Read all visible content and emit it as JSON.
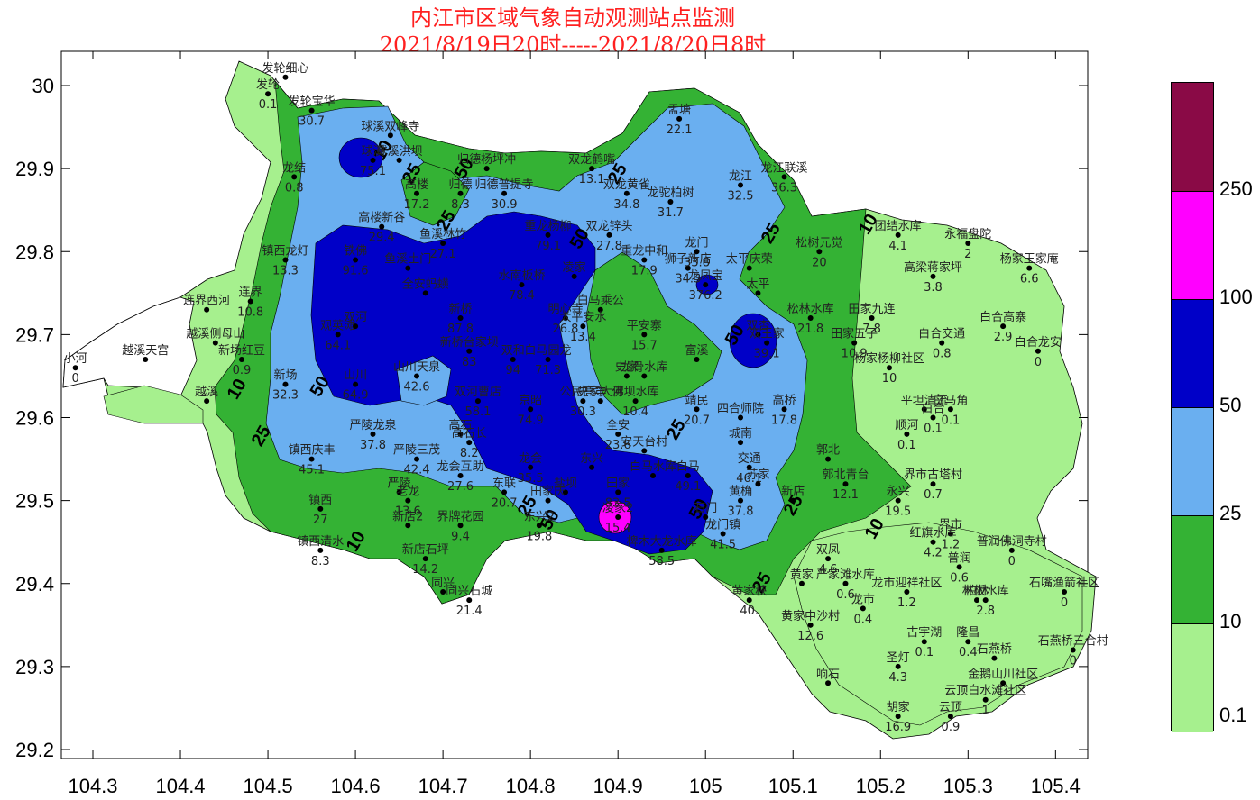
{
  "title": {
    "line1": "内江市区域气象自动观测站点监测",
    "line2": "2021/8/19日20时-----2021/8/20日8时"
  },
  "axes": {
    "x_ticks": [
      "104.3",
      "104.4",
      "104.5",
      "104.6",
      "104.7",
      "104.8",
      "104.9",
      "105",
      "105.1",
      "105.2",
      "105.3",
      "105.4"
    ],
    "y_ticks": [
      "30",
      "29.9",
      "29.8",
      "29.7",
      "29.6",
      "29.5",
      "29.4",
      "29.3",
      "29.2"
    ]
  },
  "legend": {
    "levels": [
      "0.1",
      "10",
      "25",
      "50",
      "100",
      "250"
    ],
    "colors": [
      "#a6f08e",
      "#34b234",
      "#6aaff0",
      "#0000c8",
      "#ff00ff",
      "#8a0a46"
    ]
  },
  "contour_labels": [
    "10",
    "25",
    "50",
    "10",
    "25",
    "50",
    "25",
    "10",
    "25",
    "50",
    "25",
    "10",
    "25",
    "50",
    "25",
    "10",
    "25",
    "50",
    "25",
    "50"
  ],
  "stations": [
    {
      "name": "发轮细心",
      "value": "",
      "lon": 104.52,
      "lat": 30.01
    },
    {
      "name": "发轮",
      "value": "0.1",
      "lon": 104.5,
      "lat": 29.99
    },
    {
      "name": "发轮宝华",
      "value": "30.7",
      "lon": 104.55,
      "lat": 29.97
    },
    {
      "name": "球溪双峰寺",
      "value": "",
      "lon": 104.64,
      "lat": 29.94
    },
    {
      "name": "球溪",
      "value": "75.1",
      "lon": 104.62,
      "lat": 29.91
    },
    {
      "name": "球溪洪坝",
      "value": "",
      "lon": 104.65,
      "lat": 29.91
    },
    {
      "name": "归德杨坪冲",
      "value": "",
      "lon": 104.75,
      "lat": 29.9
    },
    {
      "name": "高楼",
      "value": "17.2",
      "lon": 104.67,
      "lat": 29.87
    },
    {
      "name": "归德",
      "value": "8.3",
      "lon": 104.72,
      "lat": 29.87
    },
    {
      "name": "归德普提寺",
      "value": "30.9",
      "lon": 104.77,
      "lat": 29.87
    },
    {
      "name": "龙结",
      "value": "0.8",
      "lon": 104.53,
      "lat": 29.89
    },
    {
      "name": "高楼新谷",
      "value": "29.4",
      "lon": 104.63,
      "lat": 29.83
    },
    {
      "name": "鱼溪林竹",
      "value": "27.1",
      "lon": 104.7,
      "lat": 29.81
    },
    {
      "name": "重龙杨柳",
      "value": "79.1",
      "lon": 104.82,
      "lat": 29.82
    },
    {
      "name": "双龙锌头",
      "value": "27.8",
      "lon": 104.89,
      "lat": 29.82
    },
    {
      "name": "双龙鹤嘴",
      "value": "13.1",
      "lon": 104.87,
      "lat": 29.9
    },
    {
      "name": "双龙黄雀",
      "value": "34.8",
      "lon": 104.91,
      "lat": 29.87
    },
    {
      "name": "龙驼柏树",
      "value": "31.7",
      "lon": 104.96,
      "lat": 29.86
    },
    {
      "name": "盂塘",
      "value": "22.1",
      "lon": 104.97,
      "lat": 29.96
    },
    {
      "name": "龙江",
      "value": "32.5",
      "lon": 105.04,
      "lat": 29.88
    },
    {
      "name": "龙江联溪",
      "value": "36.3",
      "lon": 105.09,
      "lat": 29.89
    },
    {
      "name": "镇西龙灯",
      "value": "13.3",
      "lon": 104.52,
      "lat": 29.79
    },
    {
      "name": "铁佛",
      "value": "91.6",
      "lon": 104.6,
      "lat": 29.79
    },
    {
      "name": "鱼溪土门",
      "value": "",
      "lon": 104.66,
      "lat": 29.78
    },
    {
      "name": "全安蚂蟥",
      "value": "",
      "lon": 104.68,
      "lat": 29.75
    },
    {
      "name": "水南板桥",
      "value": "78.4",
      "lon": 104.79,
      "lat": 29.76
    },
    {
      "name": "凌家",
      "value": "",
      "lon": 104.85,
      "lat": 29.77
    },
    {
      "name": "重龙中和",
      "value": "17.9",
      "lon": 104.93,
      "lat": 29.79
    },
    {
      "name": "狮子新店",
      "value": "34.3",
      "lon": 104.98,
      "lat": 29.78
    },
    {
      "name": "龙门",
      "value": "33.8",
      "lon": 104.99,
      "lat": 29.8
    },
    {
      "name": "太平庆荣",
      "value": "",
      "lon": 105.05,
      "lat": 29.78
    },
    {
      "name": "太平",
      "value": "",
      "lon": 105.06,
      "lat": 29.75
    },
    {
      "name": "龙凤宝",
      "value": "376.2",
      "lon": 105.0,
      "lat": 29.76
    },
    {
      "name": "松树元觉",
      "value": "20",
      "lon": 105.13,
      "lat": 29.8
    },
    {
      "name": "团结水库",
      "value": "4.1",
      "lon": 105.22,
      "lat": 29.82
    },
    {
      "name": "永福盘陀",
      "value": "2",
      "lon": 105.3,
      "lat": 29.81
    },
    {
      "name": "杨家王家庵",
      "value": "6.6",
      "lon": 105.37,
      "lat": 29.78
    },
    {
      "name": "高梁蒋家坪",
      "value": "3.8",
      "lon": 105.26,
      "lat": 29.77
    },
    {
      "name": "连界西河",
      "value": "",
      "lon": 104.43,
      "lat": 29.73
    },
    {
      "name": "连界",
      "value": "10.8",
      "lon": 104.48,
      "lat": 29.74
    },
    {
      "name": "观英滩",
      "value": "64.1",
      "lon": 104.58,
      "lat": 29.7
    },
    {
      "name": "双河",
      "value": "",
      "lon": 104.6,
      "lat": 29.71
    },
    {
      "name": "新桥",
      "value": "87.8",
      "lon": 104.72,
      "lat": 29.72
    },
    {
      "name": "明心寺",
      "value": "26.8",
      "lon": 104.84,
      "lat": 29.72
    },
    {
      "name": "白马乘公",
      "value": "",
      "lon": 104.88,
      "lat": 29.73
    },
    {
      "name": "太平安水",
      "value": "13.4",
      "lon": 104.86,
      "lat": 29.71
    },
    {
      "name": "平安寨",
      "value": "15.7",
      "lon": 104.93,
      "lat": 29.7
    },
    {
      "name": "双杏",
      "value": "",
      "lon": 105.06,
      "lat": 29.7
    },
    {
      "name": "双王家",
      "value": "39.1",
      "lon": 105.07,
      "lat": 29.69
    },
    {
      "name": "松林水库",
      "value": "21.8",
      "lon": 105.12,
      "lat": 29.72
    },
    {
      "name": "田家九连",
      "value": "7.8",
      "lon": 105.19,
      "lat": 29.72
    },
    {
      "name": "田家五子",
      "value": "10.9",
      "lon": 105.17,
      "lat": 29.69
    },
    {
      "name": "白合交通",
      "value": "0.8",
      "lon": 105.27,
      "lat": 29.69
    },
    {
      "name": "白合高寨",
      "value": "2.9",
      "lon": 105.34,
      "lat": 29.71
    },
    {
      "name": "白合龙安",
      "value": "0",
      "lon": 105.38,
      "lat": 29.68
    },
    {
      "name": "越溪侧母山",
      "value": "",
      "lon": 104.44,
      "lat": 29.69
    },
    {
      "name": "越溪天宫",
      "value": "",
      "lon": 104.36,
      "lat": 29.67
    },
    {
      "name": "新场红豆",
      "value": "0.9",
      "lon": 104.47,
      "lat": 29.67
    },
    {
      "name": "小河",
      "value": "0",
      "lon": 104.28,
      "lat": 29.66
    },
    {
      "name": "新场",
      "value": "32.3",
      "lon": 104.52,
      "lat": 29.64
    },
    {
      "name": "山川",
      "value": "64.9",
      "lon": 104.6,
      "lat": 29.64
    },
    {
      "name": "山川天泉",
      "value": "42.6",
      "lon": 104.67,
      "lat": 29.65
    },
    {
      "name": "新桥台家坝",
      "value": "83",
      "lon": 104.73,
      "lat": 29.68
    },
    {
      "name": "双和",
      "value": "94",
      "lon": 104.78,
      "lat": 29.67
    },
    {
      "name": "白马园龙",
      "value": "71.3",
      "lon": 104.82,
      "lat": 29.67
    },
    {
      "name": "史家",
      "value": "",
      "lon": 104.91,
      "lat": 29.65
    },
    {
      "name": "龙骨水库",
      "value": "",
      "lon": 104.93,
      "lat": 29.65
    },
    {
      "name": "富溪",
      "value": "",
      "lon": 104.99,
      "lat": 29.67
    },
    {
      "name": "杨家杨柳社区",
      "value": "10",
      "lon": 105.21,
      "lat": 29.66
    },
    {
      "name": "越溪",
      "value": "",
      "lon": 104.43,
      "lat": 29.62
    },
    {
      "name": "双河曹店",
      "value": "58.1",
      "lon": 104.74,
      "lat": 29.62
    },
    {
      "name": "京昭",
      "value": "74.9",
      "lon": 104.8,
      "lat": 29.61
    },
    {
      "name": "公民高丰",
      "value": "30.3",
      "lon": 104.86,
      "lat": 29.62
    },
    {
      "name": "史家大佛",
      "value": "",
      "lon": 104.88,
      "lat": 29.62
    },
    {
      "name": "河坝水库",
      "value": "10.4",
      "lon": 104.92,
      "lat": 29.62
    },
    {
      "name": "靖民",
      "value": "20.7",
      "lon": 104.99,
      "lat": 29.61
    },
    {
      "name": "四合师院",
      "value": "",
      "lon": 105.04,
      "lat": 29.6
    },
    {
      "name": "高桥",
      "value": "17.8",
      "lon": 105.09,
      "lat": 29.61
    },
    {
      "name": "平坦清流",
      "value": "",
      "lon": 105.25,
      "lat": 29.61
    },
    {
      "name": "顺河",
      "value": "0.1",
      "lon": 105.23,
      "lat": 29.58
    },
    {
      "name": "白合",
      "value": "0.1",
      "lon": 105.26,
      "lat": 29.6
    },
    {
      "name": "白马角",
      "value": "0.1",
      "lon": 105.28,
      "lat": 29.61
    },
    {
      "name": "镇西庆丰",
      "value": "45.1",
      "lon": 104.55,
      "lat": 29.55
    },
    {
      "name": "严陵龙泉",
      "value": "37.8",
      "lon": 104.62,
      "lat": 29.58
    },
    {
      "name": "高石",
      "value": "",
      "lon": 104.72,
      "lat": 29.58
    },
    {
      "name": "高石长",
      "value": "8.2",
      "lon": 104.73,
      "lat": 29.57
    },
    {
      "name": "全安",
      "value": "23.6",
      "lon": 104.9,
      "lat": 29.58
    },
    {
      "name": "安天台村",
      "value": "",
      "lon": 104.93,
      "lat": 29.56
    },
    {
      "name": "城南",
      "value": "",
      "lon": 105.04,
      "lat": 29.57
    },
    {
      "name": "严陵三茂",
      "value": "42.4",
      "lon": 104.67,
      "lat": 29.55
    },
    {
      "name": "交通",
      "value": "46.1",
      "lon": 105.05,
      "lat": 29.54
    },
    {
      "name": "郭北",
      "value": "",
      "lon": 105.14,
      "lat": 29.55
    },
    {
      "name": "郭北青台",
      "value": "12.1",
      "lon": 105.16,
      "lat": 29.52
    },
    {
      "name": "永兴",
      "value": "19.5",
      "lon": 105.22,
      "lat": 29.5
    },
    {
      "name": "界市古塔村",
      "value": "0.7",
      "lon": 105.26,
      "lat": 29.52
    },
    {
      "name": "龙会互助",
      "value": "27.6",
      "lon": 104.72,
      "lat": 29.53
    },
    {
      "name": "龙会",
      "value": "35.5",
      "lon": 104.8,
      "lat": 29.54
    },
    {
      "name": "东兴",
      "value": "",
      "lon": 104.87,
      "lat": 29.54
    },
    {
      "name": "白马水库",
      "value": "",
      "lon": 104.94,
      "lat": 29.53
    },
    {
      "name": "白马",
      "value": "49.1",
      "lon": 104.98,
      "lat": 29.53
    },
    {
      "name": "苏家",
      "value": "",
      "lon": 105.06,
      "lat": 29.52
    },
    {
      "name": "黄桷",
      "value": "37.8",
      "lon": 105.04,
      "lat": 29.5
    },
    {
      "name": "新店",
      "value": "",
      "lon": 105.1,
      "lat": 29.5
    },
    {
      "name": "严陵",
      "value": "",
      "lon": 104.65,
      "lat": 29.51
    },
    {
      "name": "老龙",
      "value": "13.6",
      "lon": 104.66,
      "lat": 29.5
    },
    {
      "name": "东联",
      "value": "20.7",
      "lon": 104.77,
      "lat": 29.51
    },
    {
      "name": "盐坝",
      "value": "",
      "lon": 104.84,
      "lat": 29.51
    },
    {
      "name": "田家",
      "value": "83.5",
      "lon": 104.9,
      "lat": 29.51
    },
    {
      "name": "镇西",
      "value": "27",
      "lon": 104.56,
      "lat": 29.49
    },
    {
      "name": "东兴2",
      "value": "19.8",
      "lon": 104.81,
      "lat": 29.47
    },
    {
      "name": "界牌花园",
      "value": "9.4",
      "lon": 104.72,
      "lat": 29.47
    },
    {
      "name": "新店2",
      "value": "",
      "lon": 104.66,
      "lat": 29.47
    },
    {
      "name": "田家庆",
      "value": "",
      "lon": 104.82,
      "lat": 29.5
    },
    {
      "name": "凌家2",
      "value": "15.4",
      "lon": 104.9,
      "lat": 29.48
    },
    {
      "name": "石门",
      "value": "",
      "lon": 105.0,
      "lat": 29.48
    },
    {
      "name": "龙门镇",
      "value": "41.5",
      "lon": 105.02,
      "lat": 29.46
    },
    {
      "name": "界市",
      "value": "1.2",
      "lon": 105.28,
      "lat": 29.46
    },
    {
      "name": "红旗水库",
      "value": "4.2",
      "lon": 105.26,
      "lat": 29.45
    },
    {
      "name": "镇西清水",
      "value": "8.3",
      "lon": 104.56,
      "lat": 29.44
    },
    {
      "name": "新店石坪",
      "value": "14.2",
      "lon": 104.68,
      "lat": 29.43
    },
    {
      "name": "椑木大龙水库",
      "value": "58.5",
      "lon": 104.95,
      "lat": 29.44
    },
    {
      "name": "双凤",
      "value": "4.6",
      "lon": 105.14,
      "lat": 29.43
    },
    {
      "name": "普润",
      "value": "0.6",
      "lon": 105.29,
      "lat": 29.42
    },
    {
      "name": "普润佛洞寺村",
      "value": "0",
      "lon": 105.35,
      "lat": 29.44
    },
    {
      "name": "严家滩水库",
      "value": "0.6",
      "lon": 105.16,
      "lat": 29.4
    },
    {
      "name": "龙市迎祥社区",
      "value": "1.2",
      "lon": 105.23,
      "lat": 29.39
    },
    {
      "name": "柏林",
      "value": "",
      "lon": 105.31,
      "lat": 29.38
    },
    {
      "name": "林板水库",
      "value": "2.8",
      "lon": 105.32,
      "lat": 29.38
    },
    {
      "name": "石嘴渔箭社区",
      "value": "0",
      "lon": 105.41,
      "lat": 29.39
    },
    {
      "name": "同兴",
      "value": "",
      "lon": 104.7,
      "lat": 29.39
    },
    {
      "name": "同兴石城",
      "value": "21.4",
      "lon": 104.73,
      "lat": 29.38
    },
    {
      "name": "黄家",
      "value": "",
      "lon": 105.11,
      "lat": 29.4
    },
    {
      "name": "黄家秧",
      "value": "40.",
      "lon": 105.05,
      "lat": 29.38
    },
    {
      "name": "黄家中沙村",
      "value": "12.6",
      "lon": 105.12,
      "lat": 29.35
    },
    {
      "name": "龙市",
      "value": "0.4",
      "lon": 105.18,
      "lat": 29.37
    },
    {
      "name": "古宇湖",
      "value": "0.1",
      "lon": 105.25,
      "lat": 29.33
    },
    {
      "name": "隆昌",
      "value": "0.4",
      "lon": 105.3,
      "lat": 29.33
    },
    {
      "name": "石燕桥",
      "value": "",
      "lon": 105.33,
      "lat": 29.31
    },
    {
      "name": "石燕桥三合村",
      "value": "0",
      "lon": 105.42,
      "lat": 29.32
    },
    {
      "name": "圣灯",
      "value": "4.3",
      "lon": 105.22,
      "lat": 29.3
    },
    {
      "name": "金鹅山川社区",
      "value": "",
      "lon": 105.34,
      "lat": 29.28
    },
    {
      "name": "响石",
      "value": "",
      "lon": 105.14,
      "lat": 29.28
    },
    {
      "name": "云顶白水滩社区",
      "value": "1",
      "lon": 105.32,
      "lat": 29.26
    },
    {
      "name": "胡家",
      "value": "16.9",
      "lon": 105.22,
      "lat": 29.24
    },
    {
      "name": "云顶",
      "value": "0.9",
      "lon": 105.28,
      "lat": 29.24
    }
  ]
}
